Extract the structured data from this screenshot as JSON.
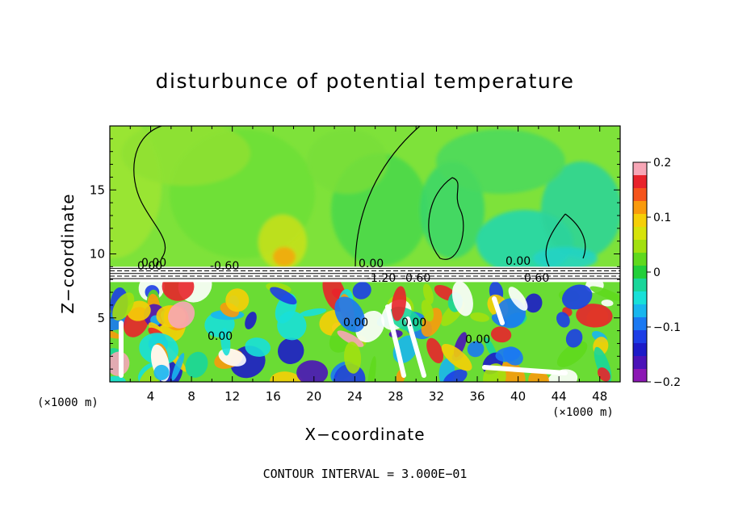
{
  "chart_data": {
    "type": "heatmap",
    "title": "disturbunce of potential temperature",
    "xlabel": "X−coordinate",
    "ylabel": "Z−coordinate",
    "x_unit": "(×1000 m)",
    "z_unit": "(×1000 m)",
    "xlim": [
      0,
      50
    ],
    "ylim": [
      0,
      20
    ],
    "x_ticks": [
      4,
      8,
      12,
      16,
      20,
      24,
      28,
      32,
      36,
      40,
      44,
      48
    ],
    "y_ticks": [
      5,
      10,
      15
    ],
    "colorbar": {
      "range": [
        -0.2,
        0.2
      ],
      "tick_labels": [
        "0.2",
        "0.1",
        "0",
        "−0.1",
        "−0.2"
      ],
      "tick_values": [
        0.2,
        0.1,
        0,
        -0.1,
        -0.2
      ],
      "colors": [
        "#f7a6b6",
        "#e8232b",
        "#f5541b",
        "#f99a0c",
        "#f5cf07",
        "#d6e30b",
        "#a2e00f",
        "#5fd91d",
        "#22cf3a",
        "#19d69a",
        "#18e0d8",
        "#18b6ee",
        "#1b79f2",
        "#1d3ee6",
        "#1d1bc8",
        "#4b13b8",
        "#8c18b4"
      ]
    },
    "contour_labels": [
      "0.00",
      "0.00",
      "-0.60",
      "0.00",
      "-1.20",
      "-0.60",
      "0.00",
      "-0.60",
      "0.00",
      "0.00",
      "0.00",
      "0.00"
    ],
    "contour_interval_text": "CONTOUR INTERVAL = 3.000E−01",
    "grid": false
  }
}
